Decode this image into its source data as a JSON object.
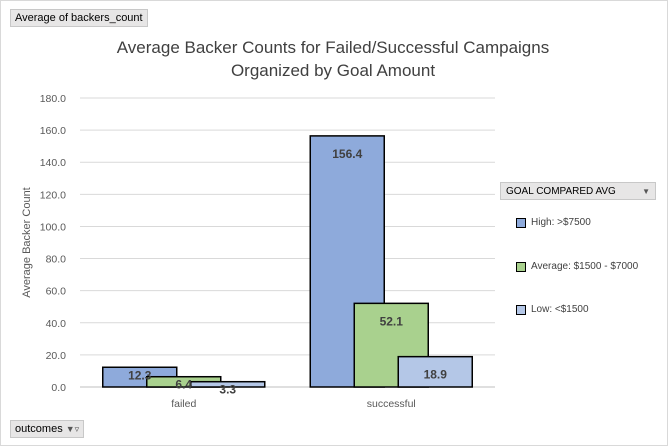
{
  "filters": {
    "values_field": "Average of backers_count",
    "axis_field": "outcomes",
    "legend_field": "GOAL COMPARED AVG"
  },
  "chart_data": {
    "type": "bar",
    "title_line1": "Average Backer Counts for Failed/Successful Campaigns",
    "title_line2": "Organized by Goal Amount",
    "xlabel": "",
    "ylabel": "Average Backer Count",
    "ylim": [
      0,
      180
    ],
    "yticks": [
      "0.0",
      "20.0",
      "40.0",
      "60.0",
      "80.0",
      "100.0",
      "120.0",
      "140.0",
      "160.0",
      "180.0"
    ],
    "grid": true,
    "legend_position": "right",
    "categories": [
      "failed",
      "successful"
    ],
    "series": [
      {
        "name": "High: >$7500",
        "color": "#8eaadb",
        "values": [
          12.3,
          156.4
        ],
        "labels": [
          "12.3",
          "156.4"
        ]
      },
      {
        "name": "Average: $1500 - $7000",
        "color": "#a9d18e",
        "values": [
          6.4,
          52.1
        ],
        "labels": [
          "6.4",
          "52.1"
        ]
      },
      {
        "name": "Low: <$1500",
        "color": "#b4c7e7",
        "values": [
          3.3,
          18.9
        ],
        "labels": [
          "3.3",
          "18.9"
        ]
      }
    ]
  }
}
